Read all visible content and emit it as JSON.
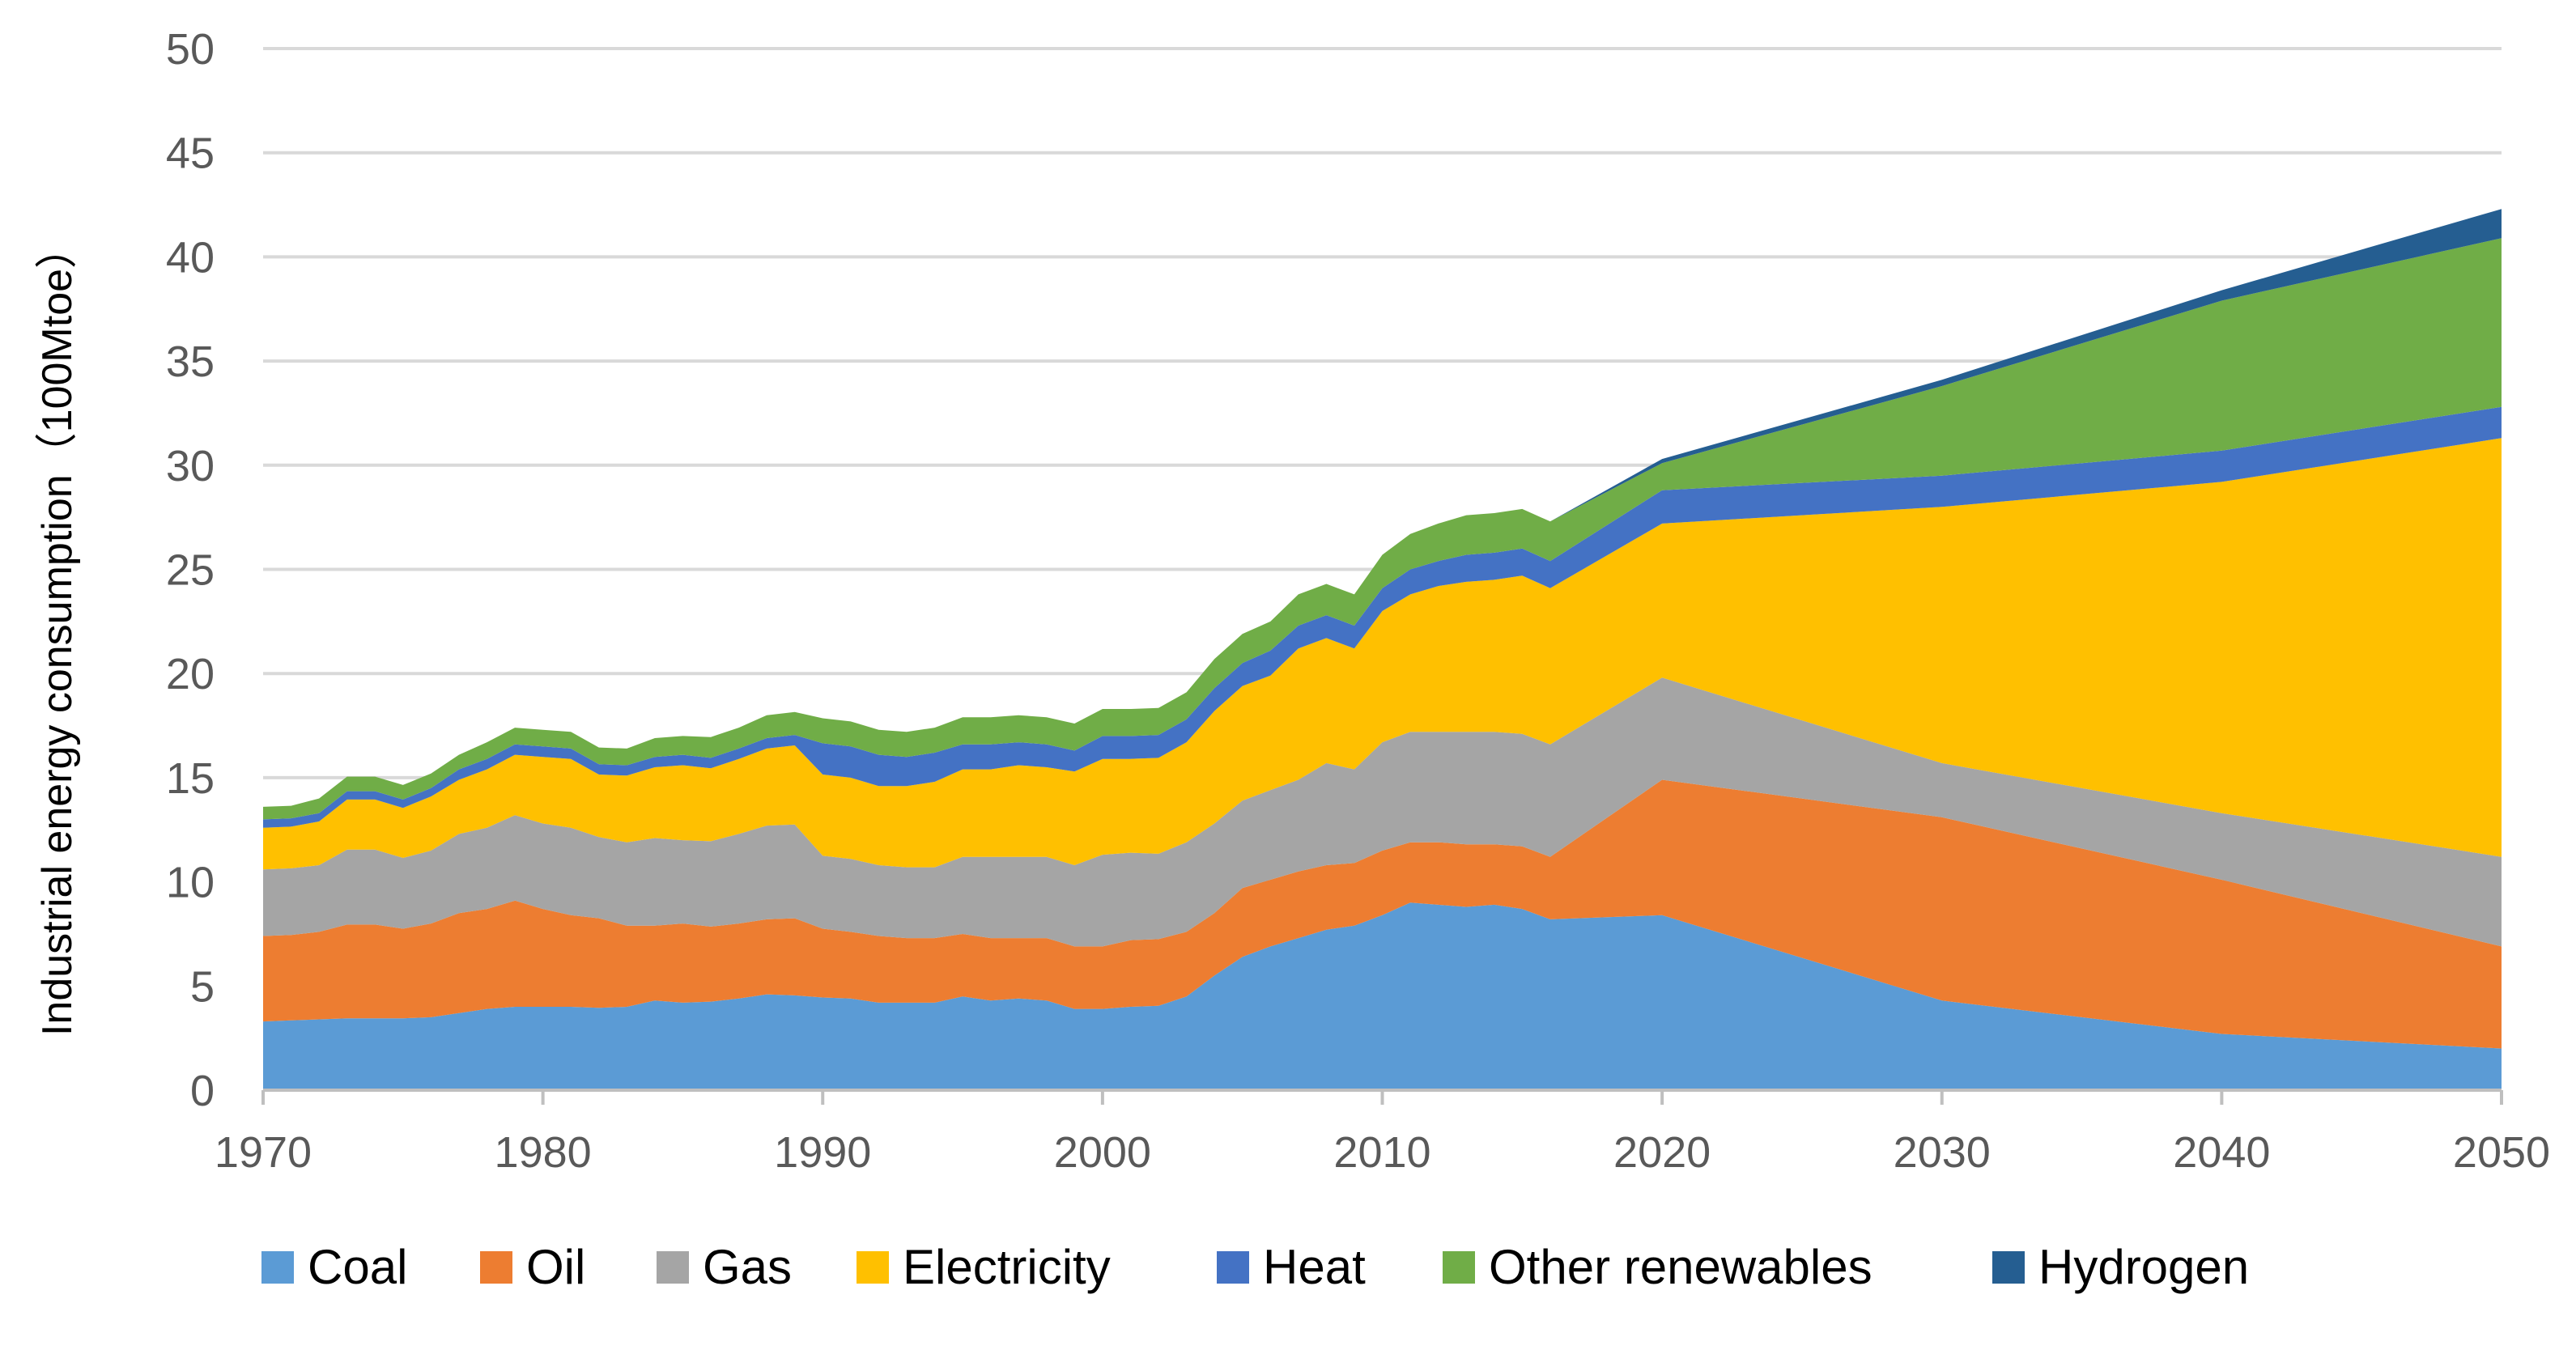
{
  "chart_data": {
    "type": "area",
    "stacked": true,
    "title": "",
    "xlabel": "",
    "ylabel": "Industrial energy consumption（100Mtoe）",
    "ylim": [
      0,
      50
    ],
    "xlim": [
      1970,
      2050
    ],
    "yticks": [
      "0",
      "5",
      "10",
      "15",
      "20",
      "25",
      "30",
      "35",
      "40",
      "45",
      "50"
    ],
    "xticks": [
      "1970",
      "1980",
      "1990",
      "2000",
      "2010",
      "2020",
      "2030",
      "2040",
      "2050"
    ],
    "grid": true,
    "legend_position": "bottom",
    "x": [
      1970,
      1971,
      1972,
      1973,
      1974,
      1975,
      1976,
      1977,
      1978,
      1979,
      1980,
      1981,
      1982,
      1983,
      1984,
      1985,
      1986,
      1987,
      1988,
      1989,
      1990,
      1991,
      1992,
      1993,
      1994,
      1995,
      1996,
      1997,
      1998,
      1999,
      2000,
      2001,
      2002,
      2003,
      2004,
      2005,
      2006,
      2007,
      2008,
      2009,
      2010,
      2011,
      2012,
      2013,
      2014,
      2015,
      2016,
      2020,
      2030,
      2040,
      2050
    ],
    "series": [
      {
        "name": "Coal",
        "color": "#5b9bd5",
        "values": [
          3.3,
          3.35,
          3.4,
          3.45,
          3.45,
          3.45,
          3.5,
          3.7,
          3.9,
          4.0,
          4.0,
          4.0,
          3.95,
          4.0,
          4.3,
          4.2,
          4.25,
          4.4,
          4.6,
          4.55,
          4.45,
          4.4,
          4.2,
          4.2,
          4.2,
          4.5,
          4.3,
          4.4,
          4.3,
          3.9,
          3.9,
          4.0,
          4.05,
          4.5,
          5.5,
          6.4,
          6.9,
          7.3,
          7.7,
          7.9,
          8.4,
          9.0,
          8.9,
          8.8,
          8.9,
          8.7,
          8.2,
          8.4,
          4.3,
          2.7,
          2.0
        ]
      },
      {
        "name": "Oil",
        "color": "#ed7d31",
        "values": [
          4.1,
          4.1,
          4.2,
          4.5,
          4.5,
          4.3,
          4.5,
          4.8,
          4.8,
          5.1,
          4.7,
          4.4,
          4.3,
          3.9,
          3.6,
          3.8,
          3.6,
          3.6,
          3.6,
          3.7,
          3.3,
          3.2,
          3.2,
          3.1,
          3.1,
          3.0,
          3.0,
          2.9,
          3.0,
          3.0,
          3.0,
          3.2,
          3.2,
          3.1,
          3.0,
          3.3,
          3.2,
          3.2,
          3.1,
          3.0,
          3.1,
          2.9,
          3.0,
          3.0,
          2.9,
          3.0,
          3.0,
          6.5,
          8.8,
          7.4,
          4.9
        ]
      },
      {
        "name": "Gas",
        "color": "#a5a5a5",
        "values": [
          3.2,
          3.2,
          3.2,
          3.6,
          3.6,
          3.4,
          3.5,
          3.8,
          3.9,
          4.1,
          4.1,
          4.2,
          3.9,
          4.0,
          4.2,
          4.0,
          4.1,
          4.3,
          4.5,
          4.5,
          3.5,
          3.5,
          3.4,
          3.4,
          3.4,
          3.7,
          3.9,
          3.9,
          3.9,
          3.9,
          4.4,
          4.2,
          4.1,
          4.3,
          4.3,
          4.2,
          4.3,
          4.4,
          4.9,
          4.5,
          5.2,
          5.3,
          5.3,
          5.4,
          5.4,
          5.4,
          5.4,
          4.9,
          2.6,
          3.2,
          4.3
        ]
      },
      {
        "name": "Electricity",
        "color": "#ffc000",
        "values": [
          2.0,
          2.0,
          2.1,
          2.4,
          2.4,
          2.4,
          2.6,
          2.6,
          2.8,
          2.9,
          3.2,
          3.3,
          3.0,
          3.2,
          3.4,
          3.6,
          3.5,
          3.6,
          3.7,
          3.8,
          3.9,
          3.9,
          3.8,
          3.9,
          4.1,
          4.2,
          4.2,
          4.4,
          4.3,
          4.5,
          4.6,
          4.5,
          4.6,
          4.8,
          5.4,
          5.5,
          5.5,
          6.3,
          6.0,
          5.8,
          6.3,
          6.6,
          7.0,
          7.2,
          7.3,
          7.6,
          7.5,
          7.4,
          12.3,
          15.9,
          20.1
        ]
      },
      {
        "name": "Heat",
        "color": "#4472c4",
        "values": [
          0.4,
          0.4,
          0.4,
          0.4,
          0.4,
          0.4,
          0.4,
          0.5,
          0.5,
          0.5,
          0.5,
          0.5,
          0.5,
          0.5,
          0.5,
          0.5,
          0.5,
          0.5,
          0.5,
          0.5,
          1.5,
          1.5,
          1.5,
          1.4,
          1.4,
          1.2,
          1.2,
          1.1,
          1.1,
          1.0,
          1.1,
          1.1,
          1.1,
          1.1,
          1.1,
          1.1,
          1.2,
          1.1,
          1.1,
          1.1,
          1.1,
          1.2,
          1.2,
          1.3,
          1.3,
          1.3,
          1.3,
          1.6,
          1.5,
          1.5,
          1.5
        ]
      },
      {
        "name": "Other renewables",
        "color": "#70ad47",
        "values": [
          0.6,
          0.6,
          0.7,
          0.7,
          0.7,
          0.7,
          0.7,
          0.7,
          0.8,
          0.8,
          0.8,
          0.8,
          0.8,
          0.8,
          0.9,
          0.9,
          1.0,
          1.0,
          1.1,
          1.1,
          1.2,
          1.2,
          1.2,
          1.2,
          1.2,
          1.3,
          1.3,
          1.3,
          1.3,
          1.3,
          1.3,
          1.3,
          1.3,
          1.3,
          1.4,
          1.4,
          1.4,
          1.5,
          1.5,
          1.5,
          1.6,
          1.7,
          1.8,
          1.9,
          1.9,
          1.9,
          1.9,
          1.3,
          4.3,
          7.2,
          8.1
        ]
      },
      {
        "name": "Hydrogen",
        "color": "#255e91",
        "values": [
          0,
          0,
          0,
          0,
          0,
          0,
          0,
          0,
          0,
          0,
          0,
          0,
          0,
          0,
          0,
          0,
          0,
          0,
          0,
          0,
          0,
          0,
          0,
          0,
          0,
          0,
          0,
          0,
          0,
          0,
          0,
          0,
          0,
          0,
          0,
          0,
          0,
          0,
          0,
          0,
          0,
          0,
          0,
          0,
          0,
          0,
          0,
          0.2,
          0.3,
          0.5,
          1.4
        ]
      }
    ]
  }
}
